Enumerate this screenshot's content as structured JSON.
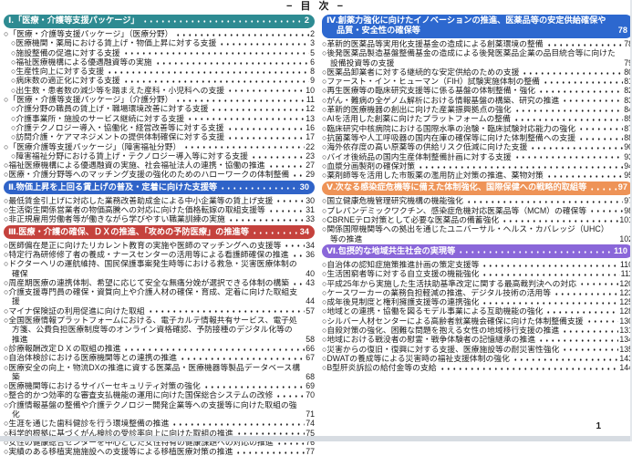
{
  "page": {
    "title": "− 目 次 −",
    "page_number": "1"
  },
  "section_colors": {
    "section1": "#2e8b92",
    "section2": "#2f63c8",
    "section3": "#c5423d",
    "section4": "#2d68cf",
    "section5": "#ee9357",
    "section6": "#8a67d9"
  },
  "columns": [
    {
      "items": [
        {
          "type": "section",
          "text": "Ⅰ.「医療・介護等支援パッケージ」",
          "page": "2",
          "color": "#2e8b92"
        },
        {
          "type": "entry",
          "indent": 0,
          "text": "○「医療・介護等支援パッケージ」（医療分野）",
          "page": "2"
        },
        {
          "type": "entry",
          "indent": 1,
          "text": "○医療機関・薬局における賃上げ・物価上昇に対する支援",
          "page": "3"
        },
        {
          "type": "entry",
          "indent": 1,
          "text": "○施設整備の促進に対する支援",
          "page": "5"
        },
        {
          "type": "entry",
          "indent": 1,
          "text": "○福祉医療機構による優遇融資等の実施",
          "page": "6"
        },
        {
          "type": "entry",
          "indent": 1,
          "text": "○生産性向上に対する支援",
          "page": "8"
        },
        {
          "type": "entry",
          "indent": 1,
          "text": "○病床数の適正化に対する支援",
          "page": "9"
        },
        {
          "type": "entry",
          "indent": 1,
          "text": "○出生数・患者数の減少等を踏まえた産科・小児科への支援",
          "page": "10"
        },
        {
          "type": "entry",
          "indent": 0,
          "text": "○「医療・介護等支援パッケージ」（介護分野）",
          "page": "11"
        },
        {
          "type": "entry",
          "indent": 1,
          "text": "○介護分野の職員の賃上げ・職場環境改善に対する支援",
          "page": "12"
        },
        {
          "type": "entry",
          "indent": 1,
          "text": "○介護事業所・施設のサービス継続に対する支援",
          "page": "13"
        },
        {
          "type": "entry",
          "indent": 1,
          "text": "○介護テクノロジー導入・協働化・経営改善等に対する支援",
          "page": "16"
        },
        {
          "type": "entry",
          "indent": 1,
          "text": "○訪問介護・ケアマネジメントの提供体制確保に対する支援",
          "page": "17"
        },
        {
          "type": "entry",
          "indent": 0,
          "text": "○「医療介護等支援パッケージ」（障害福祉分野）",
          "page": "22"
        },
        {
          "type": "entry",
          "indent": 1,
          "text": "○障害福祉分野における賃上げ・テクノロジー導入等に対する支援",
          "page": "23"
        },
        {
          "type": "entry",
          "indent": 0,
          "text": "○福祉医療機構による優遇融資の実施、社会福祉法人の連携・協働の推進",
          "page": "27"
        },
        {
          "type": "entry",
          "indent": 0,
          "text": "○医療・介護分野等へのマッチング支援の強化のためのハローワークの体制整備",
          "page": "29"
        },
        {
          "type": "section",
          "text": "Ⅱ.物価上昇を上回る賃上げの普及・定着に向けた支援等",
          "page": "30",
          "color": "#2f63c8"
        },
        {
          "type": "entry",
          "indent": 0,
          "text": "○最低賃金引上げに対応した業務改善助成金による中小企業等の賃上げ支援",
          "page": "30"
        },
        {
          "type": "entry",
          "indent": 0,
          "text": "○生活衛生関係営業者の物価高騰への対応に向けた価格転嫁の取組支援等",
          "page": "31"
        },
        {
          "type": "entry",
          "indent": 0,
          "text": "○非正規雇用労働者等が働きながら学びやすい職業訓練の実施",
          "page": "33"
        },
        {
          "type": "section",
          "text": "Ⅲ.医療・介護の確保、ＤＸの推進、「攻めの予防医療」の推進等",
          "page": "34",
          "color": "#c5423d"
        },
        {
          "type": "entry",
          "indent": 0,
          "text": "○医師偏在是正に向けたリカレント教育の実施や医師のマッチングへの支援等",
          "page": "34"
        },
        {
          "type": "entry",
          "indent": 0,
          "text": "○特定行為研修修了者の養成・ナースセンターの活用等による看護師確保の推進",
          "page": "36"
        },
        {
          "type": "entry",
          "indent": 0,
          "text": "○ドクターヘリの運航維持、国民保護事案発生時等における救急・災害医療体制の確保",
          "page": "40"
        },
        {
          "type": "entry",
          "indent": 0,
          "text": "○周産期医療の連携体制、希望に応じて安全な無痛分娩が選択できる体制の構築",
          "page": "43"
        },
        {
          "type": "entry",
          "indent": 0,
          "text": "○介護支援専門員の確保・資質向上や介護人材の確保・育成、定着に向けた取組支援",
          "page": "44"
        },
        {
          "type": "entry",
          "indent": 0,
          "text": "○マイナ保険証の利用促進に向けた取組",
          "page": "57"
        },
        {
          "type": "entry",
          "indent": 0,
          "text": "○全国医療情報プラットフォームにおける、電子カルテ情報共有サービス、電子処方箋、公費負担医療制度等のオンライン資格確認、予防接種のデジタル化等の推進",
          "page": "58"
        },
        {
          "type": "entry",
          "indent": 0,
          "text": "○診療報酬改定ＤＸの取組の推進",
          "page": "66"
        },
        {
          "type": "entry",
          "indent": 0,
          "text": "○自治体検診における医療機関等との連携の推進",
          "page": "67"
        },
        {
          "type": "entry",
          "indent": 0,
          "text": "○医療安全の向上・物流DXの推進に資する医薬品・医療機器等製品データベース構築",
          "page": "68"
        },
        {
          "type": "entry",
          "indent": 0,
          "text": "○医療機関等におけるサイバーセキュリティ対策の強化",
          "page": "69"
        },
        {
          "type": "entry",
          "indent": 0,
          "text": "○整合的かつ効率的な審査支払機能の運用に向けた国保総合システムの改修",
          "page": "70"
        },
        {
          "type": "entry",
          "indent": 0,
          "text": "○介護情報基盤の整備や介護テクノロジー開発企業等への支援等に向けた取組の強化",
          "page": "71"
        },
        {
          "type": "entry",
          "indent": 0,
          "text": "○生涯を通じた歯科健診を行う環境整備の推進",
          "page": "74"
        },
        {
          "type": "entry",
          "indent": 0,
          "text": "○科学的根拠に基づくがん検診の受診率向上に向けた取組の推進",
          "page": "75"
        },
        {
          "type": "entry",
          "indent": 0,
          "text": "○女性の健康総合センターを中心とした女性特有の健康課題への対応の推進",
          "page": "76"
        },
        {
          "type": "entry",
          "indent": 0,
          "text": "○実績のある移植実施施設への支援等による移植医療対策の推進",
          "page": "77"
        }
      ]
    },
    {
      "items": [
        {
          "type": "section",
          "text": "Ⅳ.創薬力強化に向けたイノベーションの推進、医薬品等の安定供給確保や品質・安全性の確保等",
          "page": "78",
          "color": "#2d68cf"
        },
        {
          "type": "entry",
          "indent": 0,
          "text": "○革新的医薬品等実用化支援基金の造成による創薬環境の整備",
          "page": "78"
        },
        {
          "type": "entry",
          "indent": 0,
          "text": "○後発医薬品製造基盤整備基金の造成による後発医薬品企業の品目統合等に向けた設備投資等の支援",
          "page": "79"
        },
        {
          "type": "entry",
          "indent": 0,
          "text": "○医薬品卸業者に対する継続的な安定供給のための支援",
          "page": "80"
        },
        {
          "type": "entry",
          "indent": 0,
          "text": "○ファースト・イン・ヒューマン（FIH）試験実施体制の整備",
          "page": "81"
        },
        {
          "type": "entry",
          "indent": 0,
          "text": "○再生医療等の臨床研究支援等に係る基盤の体制整備・強化",
          "page": "82"
        },
        {
          "type": "entry",
          "indent": 0,
          "text": "○がん・難病の全ゲノム解析における情報基盤の構築、研究の推進",
          "page": "83"
        },
        {
          "type": "entry",
          "indent": 0,
          "text": "○革新的医療機器の創出に向けた産業振興拠点の強化",
          "page": "84"
        },
        {
          "type": "entry",
          "indent": 0,
          "text": "○AIを活用した創薬に向けたプラットフォームの整備",
          "page": "85"
        },
        {
          "type": "entry",
          "indent": 0,
          "text": "○臨床研究中核病院における国際水準の治験・臨床試験対応能力の強化",
          "page": "87"
        },
        {
          "type": "entry",
          "indent": 0,
          "text": "○抗菌薬等や人工呼吸器の国内在庫の確保等に向けた体制整備への支援",
          "page": "88"
        },
        {
          "type": "entry",
          "indent": 0,
          "text": "○海外依存度の高い原薬等の供給リスク低減に向けた支援",
          "page": "90"
        },
        {
          "type": "entry",
          "indent": 0,
          "text": "○バイオ後続品の国内生産体制整備計画に対する支援",
          "page": "93"
        },
        {
          "type": "entry",
          "indent": 0,
          "text": "○血漿分画製剤の確保対策",
          "page": "94"
        },
        {
          "type": "entry",
          "indent": 0,
          "text": "○薬剤師等を活用した市販薬の濫用防止対策の推進、薬物対策",
          "page": "95"
        },
        {
          "type": "section",
          "text": "Ⅴ.次なる感染症危機等に備えた体制強化、国際保健への戦略的取組等",
          "page": "97",
          "color": "#ee9357"
        },
        {
          "type": "entry",
          "indent": 0,
          "text": "○国立健康危機管理研究機構の機能強化",
          "page": "97"
        },
        {
          "type": "entry",
          "indent": 0,
          "text": "○プレパンデミックワクチン、感染症危機対応医薬品等（MCM）の確保等",
          "page": "98"
        },
        {
          "type": "entry",
          "indent": 0,
          "text": "○CBRNEテロ対策として必要な医薬品の備蓄強化",
          "page": "101"
        },
        {
          "type": "entry",
          "indent": 0,
          "text": "○関係国際機関等への拠出を通じたユニバーサル・ヘルス・カバレッジ（UHC）等の推進",
          "page": "102"
        },
        {
          "type": "section",
          "text": "Ⅵ.包摂的な地域共生社会の実現等",
          "page": "110",
          "color": "#8a67d9"
        },
        {
          "type": "entry",
          "indent": 0,
          "text": "○自治体の認知症施策推進計画の策定支援等",
          "page": "110"
        },
        {
          "type": "entry",
          "indent": 0,
          "text": "○生活困窮者等に対する自立支援の機能強化",
          "page": "111"
        },
        {
          "type": "entry",
          "indent": 0,
          "text": "○平成25年から実施した生活扶助基準改定に関する最高裁判決への対応",
          "page": "120"
        },
        {
          "type": "entry",
          "indent": 0,
          "text": "○ケースワーカーの業務負担軽減の推進、デジタル技術の活用等",
          "page": "123"
        },
        {
          "type": "entry",
          "indent": 0,
          "text": "○成年後見制度と権利擁護支援等の連携強化",
          "page": "125"
        },
        {
          "type": "entry",
          "indent": 0,
          "text": "○地域との連携・協働を図るモデル事業による互助機能の強化",
          "page": "128"
        },
        {
          "type": "entry",
          "indent": 0,
          "text": "○シルバー人材センターによる高齢者就業機会確保に向けた体制整備支援",
          "page": "130"
        },
        {
          "type": "entry",
          "indent": 0,
          "text": "○自殺対策の強化、困難な問題を抱える女性の地域移行支援の推進",
          "page": "131"
        },
        {
          "type": "entry",
          "indent": 0,
          "text": "○地域における戦没者の慰霊・戦争体験者の記憶継承の推進",
          "page": "134"
        },
        {
          "type": "entry",
          "indent": 0,
          "text": "○災害からの復旧・復興に対する支援、医療施設等の耐災害性強化",
          "page": "135"
        },
        {
          "type": "entry",
          "indent": 0,
          "text": "○DWATの養成等による災害時の福祉支援体制の強化",
          "page": "143"
        },
        {
          "type": "entry",
          "indent": 0,
          "text": "○B型肝炎訴訟の給付金等の支給",
          "page": "144"
        }
      ]
    }
  ]
}
